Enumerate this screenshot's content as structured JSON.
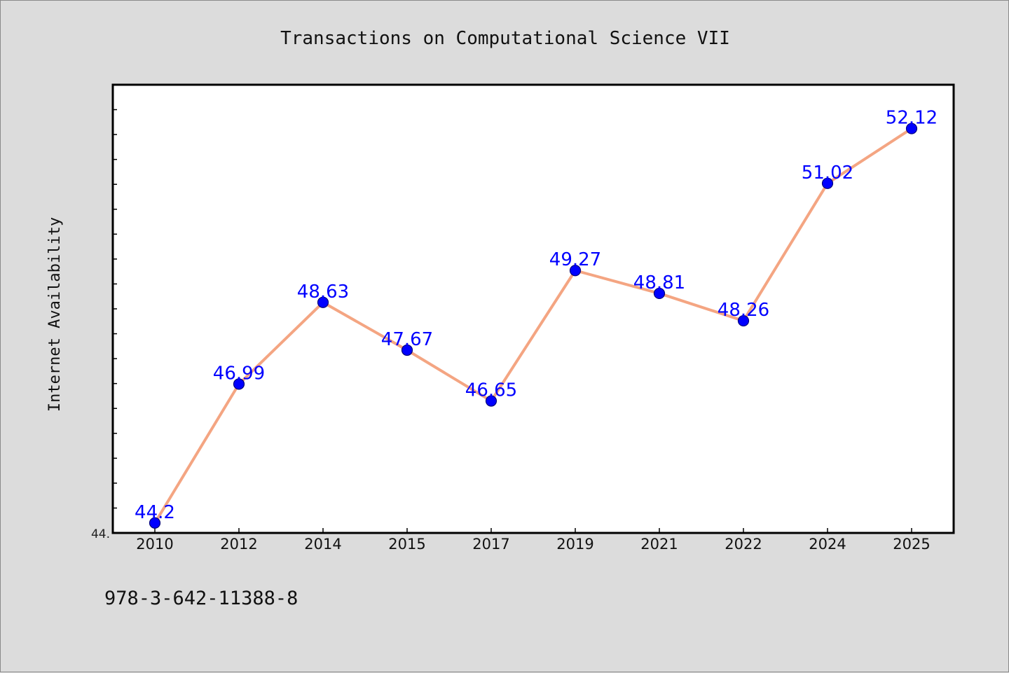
{
  "chart_data": {
    "type": "line",
    "title": "Transactions on Computational Science VII",
    "xlabel": "",
    "ylabel": "Internet Availability",
    "categories": [
      "2010",
      "2012",
      "2014",
      "2015",
      "2017",
      "2019",
      "2021",
      "2022",
      "2024",
      "2025"
    ],
    "series": [
      {
        "values": [
          44.2,
          46.99,
          48.63,
          47.67,
          46.65,
          49.27,
          48.81,
          48.26,
          51.02,
          52.12
        ],
        "labels": [
          "44.2",
          "46.99",
          "48.63",
          "47.67",
          "46.65",
          "49.27",
          "48.81",
          "48.26",
          "51.02",
          "52.12"
        ],
        "line_color": "#f4a582",
        "marker_color": "#0000ff"
      }
    ],
    "ylim": [
      44.0,
      53.0
    ],
    "y_tick_label": "44.",
    "label_color": "#0000ff",
    "grid": false,
    "legend": "none"
  },
  "footer_text": "978-3-642-11388-8"
}
